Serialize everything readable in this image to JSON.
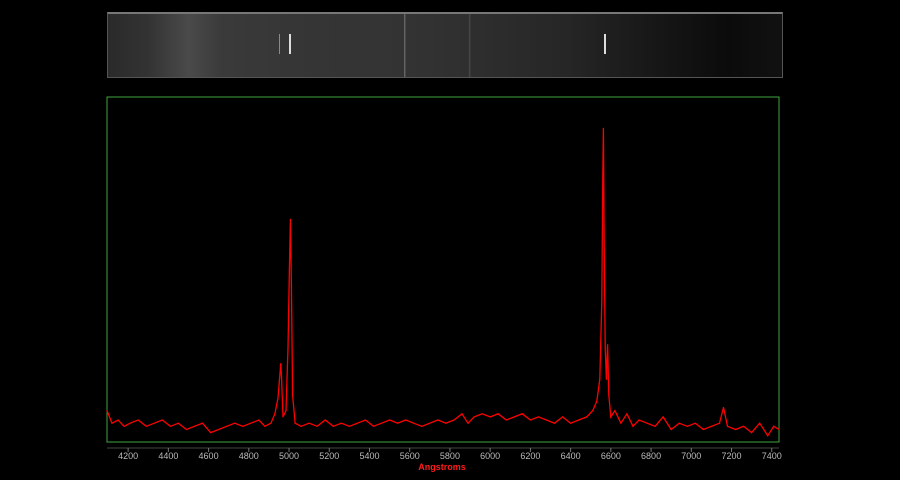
{
  "chart_data": {
    "type": "line",
    "title": "",
    "xlabel": "Angstroms",
    "ylabel": "",
    "xlim": [
      4095,
      7436
    ],
    "ylim": [
      0,
      1.1
    ],
    "grid": false,
    "x_ticks": [
      "4200",
      "4400",
      "4600",
      "4800",
      "5000",
      "5200",
      "5400",
      "5600",
      "5800",
      "6000",
      "6200",
      "6400",
      "6600",
      "6800",
      "7000",
      "7200",
      "7400"
    ],
    "series": [
      {
        "color": "#ff0000",
        "x": [
          4095,
          4120,
          4150,
          4180,
          4210,
          4250,
          4290,
          4330,
          4370,
          4410,
          4450,
          4490,
          4530,
          4570,
          4610,
          4650,
          4690,
          4730,
          4770,
          4810,
          4850,
          4880,
          4910,
          4930,
          4945,
          4955,
          4959,
          4963,
          4970,
          4985,
          4995,
          5002,
          5007,
          5012,
          5018,
          5030,
          5060,
          5100,
          5140,
          5180,
          5220,
          5260,
          5300,
          5340,
          5380,
          5420,
          5460,
          5500,
          5540,
          5580,
          5620,
          5660,
          5700,
          5740,
          5780,
          5820,
          5860,
          5890,
          5920,
          5960,
          6000,
          6040,
          6080,
          6120,
          6160,
          6200,
          6240,
          6280,
          6320,
          6360,
          6400,
          6440,
          6480,
          6510,
          6530,
          6545,
          6555,
          6560,
          6563,
          6566,
          6572,
          6578,
          6584,
          6590,
          6600,
          6620,
          6650,
          6680,
          6710,
          6740,
          6780,
          6820,
          6860,
          6900,
          6940,
          6980,
          7020,
          7060,
          7100,
          7140,
          7160,
          7180,
          7220,
          7260,
          7300,
          7340,
          7380,
          7410,
          7436
        ],
        "y": [
          0.1,
          0.06,
          0.07,
          0.05,
          0.06,
          0.07,
          0.05,
          0.06,
          0.07,
          0.05,
          0.06,
          0.04,
          0.05,
          0.06,
          0.03,
          0.04,
          0.05,
          0.06,
          0.05,
          0.06,
          0.07,
          0.05,
          0.06,
          0.09,
          0.14,
          0.22,
          0.25,
          0.2,
          0.08,
          0.1,
          0.3,
          0.55,
          0.71,
          0.5,
          0.15,
          0.06,
          0.05,
          0.06,
          0.05,
          0.07,
          0.05,
          0.06,
          0.05,
          0.06,
          0.07,
          0.05,
          0.06,
          0.07,
          0.06,
          0.07,
          0.06,
          0.05,
          0.06,
          0.07,
          0.06,
          0.07,
          0.09,
          0.06,
          0.08,
          0.09,
          0.08,
          0.09,
          0.07,
          0.08,
          0.09,
          0.07,
          0.08,
          0.07,
          0.06,
          0.08,
          0.06,
          0.07,
          0.08,
          0.1,
          0.13,
          0.2,
          0.45,
          0.85,
          1.0,
          0.7,
          0.3,
          0.2,
          0.31,
          0.15,
          0.08,
          0.1,
          0.06,
          0.09,
          0.05,
          0.07,
          0.06,
          0.05,
          0.08,
          0.04,
          0.06,
          0.05,
          0.06,
          0.04,
          0.05,
          0.06,
          0.11,
          0.05,
          0.04,
          0.05,
          0.03,
          0.06,
          0.02,
          0.05,
          0.04
        ]
      }
    ]
  }
}
